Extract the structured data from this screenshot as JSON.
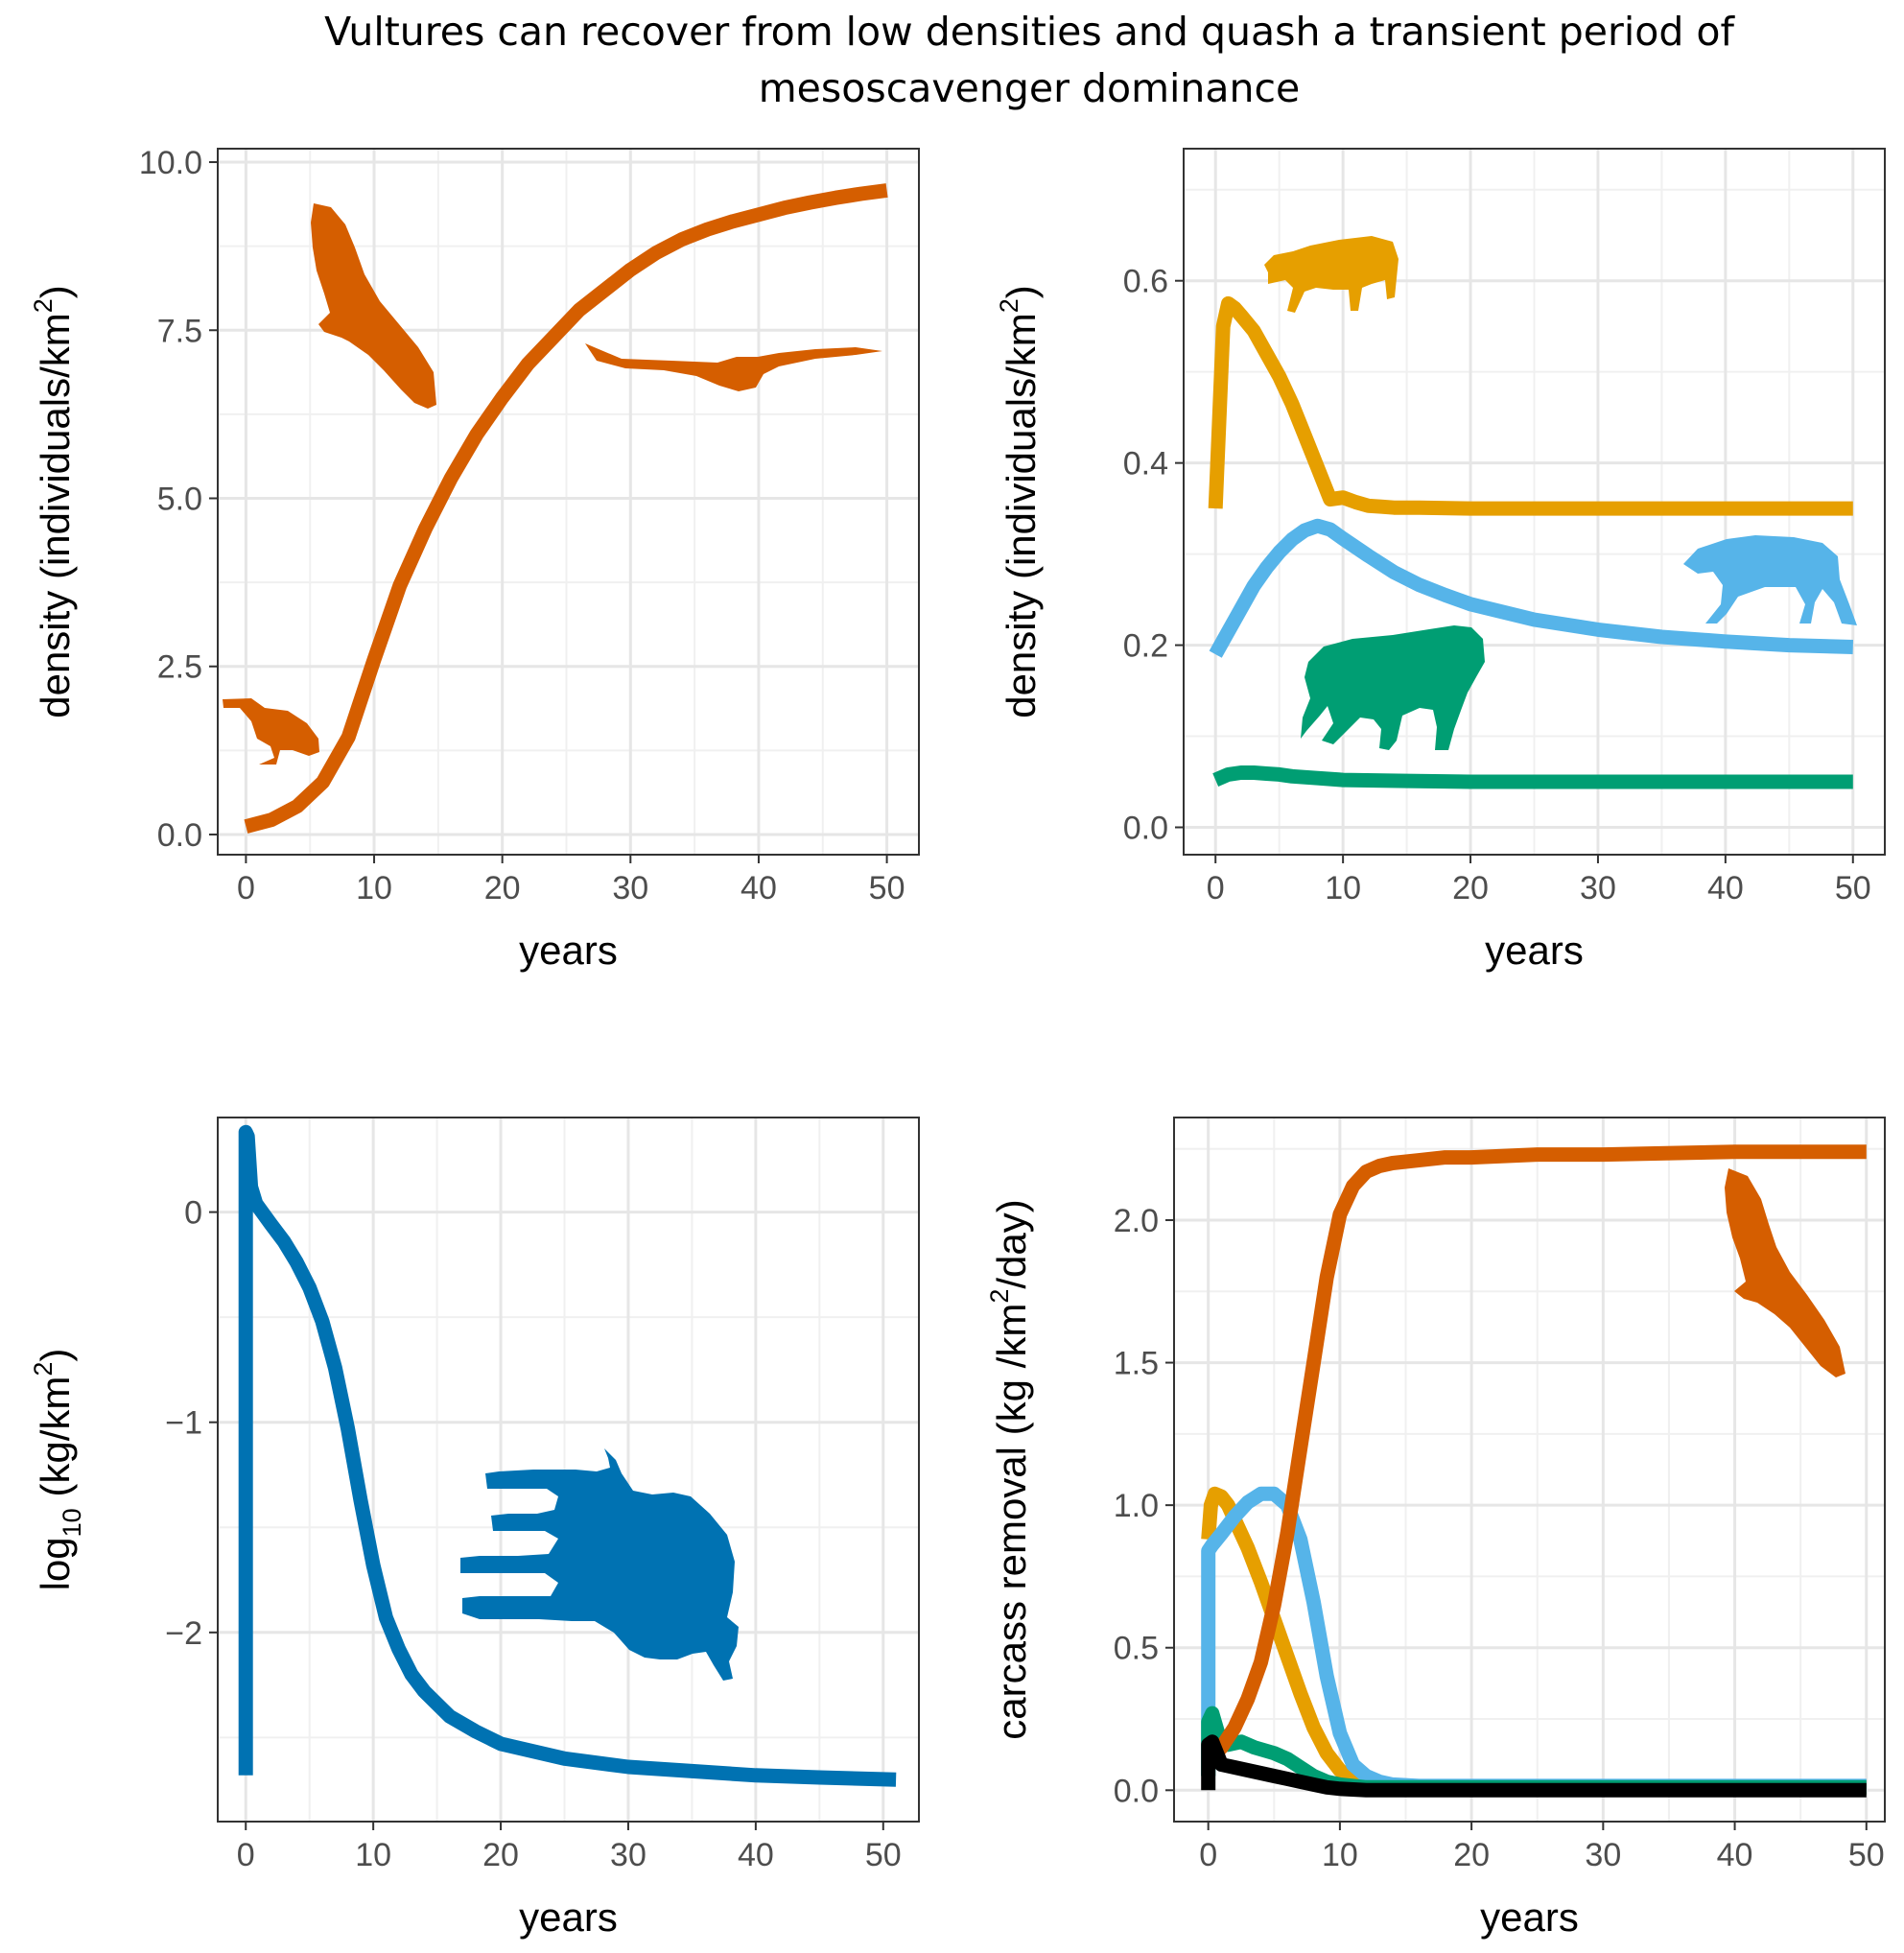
{
  "title_lines": [
    "Vultures can recover from low densities and quash a transient period of",
    "mesoscavenger dominance"
  ],
  "colors": {
    "vulture": "#D55E00",
    "jackal": "#E69F00",
    "hyena": "#56B4E9",
    "lion": "#009E73",
    "carcass": "#0072B2",
    "other": "#000000"
  },
  "chart_data": [
    {
      "type": "line",
      "panel": "top-left",
      "title": "",
      "xlabel": "years",
      "ylabel": {
        "main": "density (individuals/km",
        "sup": "2",
        "end": ")"
      },
      "xlim": [
        -2.2,
        52.5
      ],
      "ylim": [
        -0.3,
        10.2
      ],
      "xticks": [
        0,
        10,
        20,
        30,
        40,
        50
      ],
      "xtick_labels": [
        "0",
        "10",
        "20",
        "30",
        "40",
        "50"
      ],
      "yticks": [
        0,
        2.5,
        5,
        7.5,
        10
      ],
      "ytick_labels": [
        "0.0",
        "2.5",
        "5.0",
        "7.5",
        "10.0"
      ],
      "grid": true,
      "legend": "none",
      "series": [
        {
          "color_key": "vulture",
          "x": [
            0,
            2,
            4,
            6,
            8,
            10,
            12,
            14,
            16,
            18,
            20,
            22,
            24,
            26,
            28,
            30,
            32,
            34,
            36,
            38,
            40,
            42,
            44,
            46,
            48,
            50
          ],
          "y": [
            0.12,
            0.22,
            0.42,
            0.78,
            1.45,
            2.6,
            3.7,
            4.55,
            5.3,
            5.95,
            6.5,
            7.0,
            7.4,
            7.8,
            8.1,
            8.4,
            8.65,
            8.85,
            9.0,
            9.12,
            9.22,
            9.32,
            9.4,
            9.47,
            9.53,
            9.58
          ]
        }
      ]
    },
    {
      "type": "line",
      "panel": "top-right",
      "title": "",
      "xlabel": "years",
      "ylabel": {
        "main": "density (individuals/km",
        "sup": "2",
        "end": ")"
      },
      "xlim": [
        -2.5,
        52.5
      ],
      "ylim": [
        -0.03,
        0.745
      ],
      "xticks": [
        0,
        10,
        20,
        30,
        40,
        50
      ],
      "xtick_labels": [
        "0",
        "10",
        "20",
        "30",
        "40",
        "50"
      ],
      "yticks": [
        0,
        0.2,
        0.4,
        0.6
      ],
      "ytick_labels": [
        "0.0",
        "0.2",
        "0.4",
        "0.6"
      ],
      "grid": true,
      "legend": "none",
      "series": [
        {
          "color_key": "jackal",
          "x": [
            0,
            0.3,
            0.6,
            1.0,
            1.5,
            2,
            3,
            4,
            5,
            6,
            7,
            8,
            9,
            10,
            11,
            12,
            13,
            14,
            16,
            20,
            30,
            40,
            50
          ],
          "y": [
            0.35,
            0.45,
            0.55,
            0.575,
            0.57,
            0.562,
            0.545,
            0.52,
            0.495,
            0.465,
            0.43,
            0.395,
            0.36,
            0.362,
            0.357,
            0.353,
            0.352,
            0.351,
            0.351,
            0.35,
            0.35,
            0.35,
            0.35
          ]
        },
        {
          "color_key": "hyena",
          "x": [
            0,
            1,
            2,
            3,
            4,
            5,
            6,
            7,
            8,
            9,
            10,
            12,
            14,
            16,
            18,
            20,
            25,
            30,
            35,
            40,
            45,
            50
          ],
          "y": [
            0.19,
            0.215,
            0.24,
            0.265,
            0.285,
            0.302,
            0.316,
            0.326,
            0.331,
            0.327,
            0.317,
            0.298,
            0.28,
            0.266,
            0.255,
            0.245,
            0.228,
            0.217,
            0.209,
            0.204,
            0.2,
            0.198
          ]
        },
        {
          "color_key": "lion",
          "x": [
            0,
            1,
            2,
            3,
            4,
            5,
            6,
            8,
            10,
            15,
            20,
            30,
            40,
            50
          ],
          "y": [
            0.052,
            0.058,
            0.06,
            0.06,
            0.059,
            0.058,
            0.056,
            0.054,
            0.052,
            0.051,
            0.05,
            0.05,
            0.05,
            0.05
          ]
        }
      ]
    },
    {
      "type": "line",
      "panel": "bottom-left",
      "title": "",
      "xlabel": "years",
      "ylabel": {
        "main": "log",
        "sub": "10",
        "rest": " (kg/km",
        "sup": "2",
        "end": ")"
      },
      "xlim": [
        -2.2,
        52.8
      ],
      "ylim": [
        -2.9,
        0.45
      ],
      "xticks": [
        0,
        10,
        20,
        30,
        40,
        50
      ],
      "xtick_labels": [
        "0",
        "10",
        "20",
        "30",
        "40",
        "50"
      ],
      "yticks": [
        -2,
        -1,
        0
      ],
      "ytick_labels": [
        "−2",
        "−1",
        "0"
      ],
      "grid": true,
      "legend": "none",
      "series": [
        {
          "color_key": "carcass",
          "x": [
            0,
            0,
            0.15,
            0.4,
            0.8,
            2,
            3,
            4,
            5,
            6,
            7,
            8,
            9,
            10,
            11,
            12,
            13,
            14,
            16,
            18,
            20,
            25,
            30,
            35,
            40,
            45,
            51
          ],
          "y": [
            -2.68,
            0.38,
            0.36,
            0.12,
            0.04,
            -0.06,
            -0.14,
            -0.24,
            -0.36,
            -0.52,
            -0.74,
            -1.03,
            -1.37,
            -1.68,
            -1.93,
            -2.08,
            -2.2,
            -2.28,
            -2.4,
            -2.47,
            -2.53,
            -2.6,
            -2.64,
            -2.66,
            -2.68,
            -2.69,
            -2.7
          ]
        }
      ]
    },
    {
      "type": "line",
      "panel": "bottom-right",
      "title": "",
      "xlabel": "years",
      "ylabel": {
        "main": "carcass removal (kg /km",
        "sup": "2",
        "end": "/day)"
      },
      "xlim": [
        -2.6,
        51.4
      ],
      "ylim": [
        -0.11,
        2.36
      ],
      "xticks": [
        0,
        10,
        20,
        30,
        40,
        50
      ],
      "xtick_labels": [
        "0",
        "10",
        "20",
        "30",
        "40",
        "50"
      ],
      "yticks": [
        0,
        0.5,
        1,
        1.5,
        2
      ],
      "ytick_labels": [
        "0.0",
        "0.5",
        "1.0",
        "1.5",
        "2.0"
      ],
      "grid": true,
      "legend": "none",
      "series": [
        {
          "color_key": "jackal",
          "x": [
            0,
            0.2,
            0.5,
            1,
            1.5,
            2,
            3,
            4,
            5,
            6,
            7,
            8,
            9,
            10,
            11,
            12,
            14,
            20,
            30,
            40,
            50
          ],
          "y": [
            0.88,
            1.0,
            1.04,
            1.03,
            1.0,
            0.95,
            0.85,
            0.73,
            0.6,
            0.47,
            0.34,
            0.22,
            0.13,
            0.07,
            0.04,
            0.02,
            0.015,
            0.01,
            0.01,
            0.01,
            0.01
          ]
        },
        {
          "color_key": "hyena",
          "x": [
            0,
            0,
            0.3,
            1,
            2,
            3,
            4,
            5,
            6,
            7,
            8,
            9,
            10,
            11,
            12,
            13,
            14,
            16,
            20,
            30,
            40,
            50
          ],
          "y": [
            0.05,
            0.84,
            0.86,
            0.9,
            0.96,
            1.01,
            1.04,
            1.04,
            1.0,
            0.88,
            0.66,
            0.4,
            0.2,
            0.09,
            0.05,
            0.03,
            0.02,
            0.015,
            0.015,
            0.015,
            0.015,
            0.015
          ]
        },
        {
          "color_key": "lion",
          "x": [
            0,
            0,
            0.3,
            0.8,
            1.5,
            2.5,
            3.5,
            5,
            6,
            7,
            8,
            9,
            10,
            12,
            20,
            30,
            40,
            50
          ],
          "y": [
            0.05,
            0.24,
            0.27,
            0.19,
            0.16,
            0.17,
            0.15,
            0.13,
            0.11,
            0.08,
            0.05,
            0.03,
            0.02,
            0.01,
            0.01,
            0.01,
            0.01,
            0.01
          ]
        },
        {
          "color_key": "vulture",
          "x": [
            0,
            1,
            2,
            3,
            4,
            5,
            6,
            7,
            8,
            9,
            10,
            11,
            12,
            13,
            14,
            16,
            18,
            20,
            25,
            30,
            40,
            50
          ],
          "y": [
            0.1,
            0.15,
            0.22,
            0.32,
            0.45,
            0.65,
            0.9,
            1.2,
            1.5,
            1.8,
            2.02,
            2.12,
            2.17,
            2.19,
            2.2,
            2.21,
            2.22,
            2.22,
            2.23,
            2.23,
            2.24,
            2.24
          ]
        },
        {
          "color_key": "other",
          "x": [
            0,
            0,
            0.3,
            1,
            2,
            3,
            4,
            5,
            6,
            7,
            8,
            9,
            10,
            12,
            20,
            30,
            40,
            50
          ],
          "y": [
            0.0,
            0.16,
            0.17,
            0.09,
            0.08,
            0.07,
            0.06,
            0.05,
            0.04,
            0.03,
            0.02,
            0.01,
            0.005,
            0.0,
            0.0,
            0.0,
            0.0,
            0.0
          ]
        }
      ]
    }
  ]
}
